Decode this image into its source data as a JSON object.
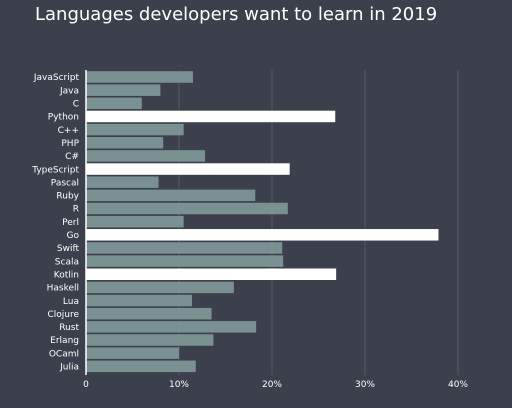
{
  "chart_data": {
    "type": "bar",
    "orientation": "horizontal",
    "title": "Languages developers want to learn in 2019",
    "xlabel": "",
    "ylabel": "",
    "xlim": [
      0,
      40
    ],
    "ticks": [
      0,
      10,
      20,
      30,
      40
    ],
    "tick_labels": [
      "0",
      "10%",
      "20%",
      "30%",
      "40%"
    ],
    "grid": true,
    "categories": [
      "JavaScript",
      "Java",
      "C",
      "Python",
      "C++",
      "PHP",
      "C#",
      "TypeScript",
      "Pascal",
      "Ruby",
      "R",
      "Perl",
      "Go",
      "Swift",
      "Scala",
      "Kotlin",
      "Haskell",
      "Lua",
      "Clojure",
      "Rust",
      "Erlang",
      "OCaml",
      "Julia"
    ],
    "values": [
      11.5,
      8.0,
      6.0,
      26.8,
      10.5,
      8.3,
      12.8,
      21.9,
      7.8,
      18.2,
      21.7,
      10.5,
      37.9,
      21.1,
      21.2,
      26.9,
      15.9,
      11.4,
      13.5,
      18.3,
      13.7,
      10.0,
      11.8
    ],
    "highlighted": [
      "Python",
      "TypeScript",
      "Go",
      "Kotlin"
    ],
    "colors": {
      "bar": "#7a9192",
      "highlight": "#ffffff",
      "background": "#3b404c",
      "grid": "#55596a"
    }
  }
}
